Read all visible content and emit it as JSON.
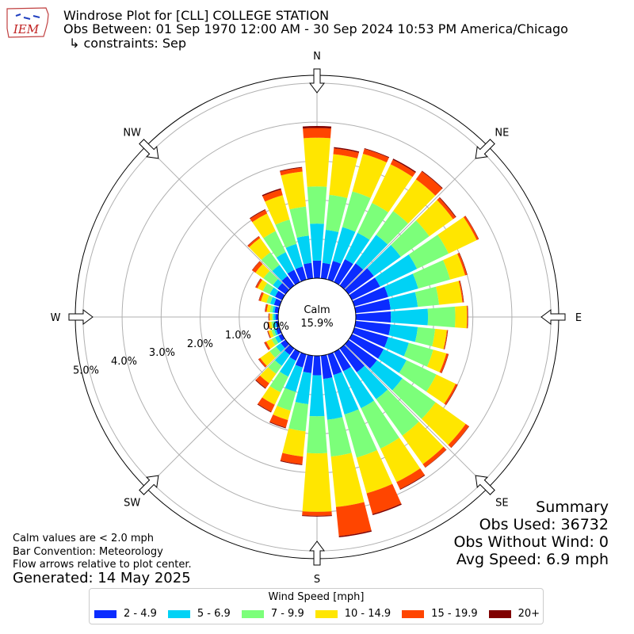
{
  "header": {
    "title": "Windrose Plot for [CLL] COLLEGE STATION",
    "subtitle": "Obs Between: 01 Sep 1970 12:00 AM - 30 Sep 2024 10:53 PM America/Chicago",
    "constraints": "↳ constraints: Sep",
    "logo_text": "IEM"
  },
  "notes": {
    "calm": "Calm values are < 2.0 mph",
    "bar_convention": "Bar Convention: Meteorology",
    "flow": "Flow arrows relative to plot center.",
    "generated": "Generated: 14 May 2025"
  },
  "summary": {
    "title": "Summary",
    "obs_used": "Obs Used: 36732",
    "obs_without_wind": "Obs Without Wind: 0",
    "avg_speed": "Avg Speed: 6.9 mph"
  },
  "colors": {
    "bins": [
      "#0b2cff",
      "#00d2f5",
      "#7cff7a",
      "#ffe600",
      "#ff4500",
      "#800000"
    ],
    "grid": "#b0b0b0"
  },
  "chart_data": {
    "type": "windrose",
    "calm_label": "Calm",
    "calm_value": "15.9%",
    "calm_percent": 15.9,
    "radial_ticks": [
      0,
      1,
      2,
      3,
      4,
      5
    ],
    "radial_tick_labels": [
      "0.0%",
      "1.0%",
      "2.0%",
      "3.0%",
      "4.0%",
      "5.0%"
    ],
    "rmax": 5.2,
    "compass_labels": [
      "N",
      "NE",
      "E",
      "SE",
      "S",
      "SW",
      "W",
      "NW"
    ],
    "legend_title": "Wind Speed [mph]",
    "bins": [
      "2 - 4.9",
      "5 - 6.9",
      "7 - 9.9",
      "10 - 14.9",
      "15 - 19.9",
      "20+"
    ],
    "directions_deg": [
      0,
      10,
      20,
      30,
      40,
      50,
      60,
      70,
      80,
      90,
      100,
      110,
      120,
      130,
      140,
      150,
      160,
      170,
      180,
      190,
      200,
      210,
      220,
      230,
      240,
      250,
      260,
      270,
      280,
      290,
      300,
      310,
      320,
      330,
      340,
      350
    ],
    "cumulative_percent": [
      [
        0.45,
        1.4,
        2.35,
        3.6,
        3.85,
        3.9
      ],
      [
        0.4,
        1.25,
        2.15,
        3.2,
        3.35,
        3.38
      ],
      [
        0.5,
        1.4,
        2.35,
        3.35,
        3.48,
        3.5
      ],
      [
        0.65,
        1.4,
        2.25,
        3.35,
        3.48,
        3.51
      ],
      [
        0.7,
        1.6,
        2.35,
        3.35,
        3.6,
        3.62
      ],
      [
        0.8,
        1.65,
        2.55,
        3.3,
        3.38,
        3.4
      ],
      [
        0.8,
        1.85,
        2.75,
        3.55,
        3.6,
        3.61
      ],
      [
        0.9,
        1.7,
        2.55,
        2.95,
        3.0,
        3.01
      ],
      [
        0.9,
        1.6,
        2.15,
        2.75,
        2.78,
        2.79
      ],
      [
        0.9,
        1.85,
        2.55,
        2.85,
        2.87,
        2.88
      ],
      [
        0.9,
        1.6,
        2.05,
        2.35,
        2.37,
        2.38
      ],
      [
        0.9,
        1.45,
        2.1,
        2.45,
        2.5,
        2.51
      ],
      [
        0.9,
        1.55,
        2.4,
        2.95,
        3.0,
        3.01
      ],
      [
        0.9,
        1.7,
        2.75,
        3.7,
        3.8,
        3.81
      ],
      [
        0.75,
        1.6,
        2.75,
        3.65,
        3.75,
        3.76
      ],
      [
        0.55,
        1.6,
        2.75,
        3.7,
        3.9,
        3.92
      ],
      [
        0.55,
        1.6,
        2.75,
        3.7,
        4.25,
        4.28
      ],
      [
        0.6,
        1.65,
        2.6,
        3.9,
        4.65,
        4.68
      ],
      [
        0.5,
        1.55,
        2.5,
        4.0,
        4.1,
        4.12
      ],
      [
        0.45,
        1.25,
        1.95,
        2.6,
        2.8,
        2.82
      ],
      [
        0.35,
        1.0,
        1.5,
        1.75,
        1.95,
        1.97
      ],
      [
        0.25,
        0.7,
        1.15,
        1.5,
        1.7,
        1.72
      ],
      [
        0.2,
        0.55,
        0.8,
        1.1,
        1.25,
        1.27
      ],
      [
        0.15,
        0.3,
        0.5,
        0.8,
        0.85,
        0.86
      ],
      [
        0.1,
        0.2,
        0.3,
        0.45,
        0.5,
        0.51
      ],
      [
        0.1,
        0.15,
        0.22,
        0.3,
        0.32,
        0.33
      ],
      [
        0.07,
        0.12,
        0.18,
        0.24,
        0.26,
        0.27
      ],
      [
        0.07,
        0.12,
        0.16,
        0.22,
        0.24,
        0.25
      ],
      [
        0.1,
        0.15,
        0.22,
        0.3,
        0.34,
        0.35
      ],
      [
        0.15,
        0.25,
        0.35,
        0.5,
        0.55,
        0.56
      ],
      [
        0.2,
        0.35,
        0.55,
        0.7,
        0.75,
        0.76
      ],
      [
        0.25,
        0.4,
        0.7,
        0.95,
        1.05,
        1.06
      ],
      [
        0.3,
        0.65,
        1.05,
        1.5,
        1.55,
        1.56
      ],
      [
        0.35,
        0.85,
        1.45,
        1.95,
        2.05,
        2.07
      ],
      [
        0.35,
        0.95,
        1.6,
        2.25,
        2.4,
        2.43
      ],
      [
        0.4,
        1.1,
        1.85,
        2.75,
        2.85,
        2.87
      ]
    ]
  }
}
